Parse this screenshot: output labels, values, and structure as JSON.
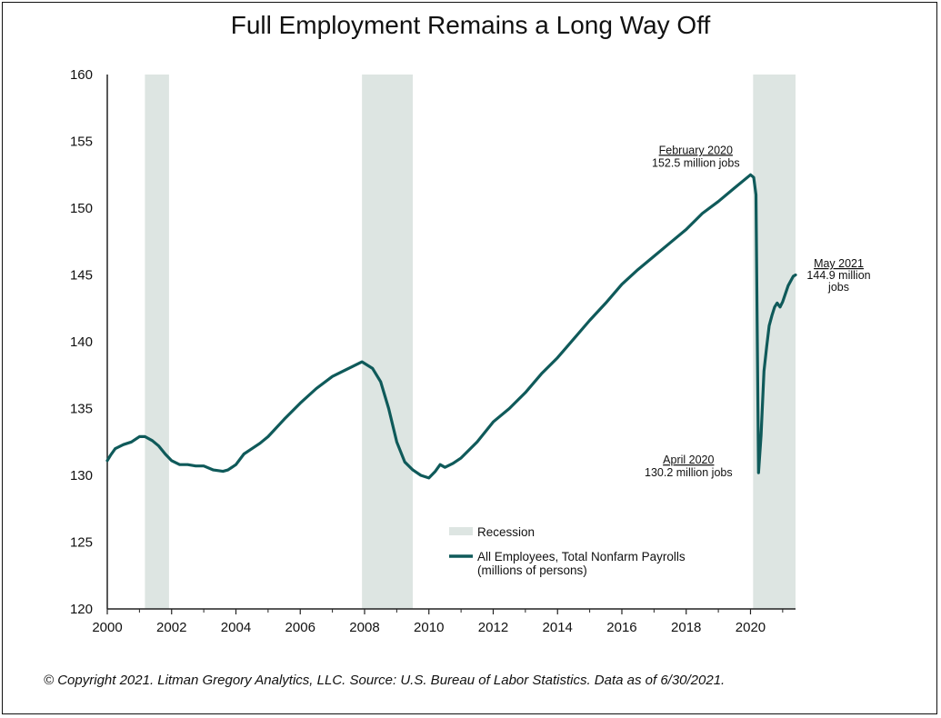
{
  "chart_data": {
    "type": "line",
    "title": "Full Employment Remains a Long Way Off",
    "xlabel": "",
    "ylabel": "",
    "xlim": [
      2000.0,
      2021.4
    ],
    "ylim": [
      120,
      160
    ],
    "x_ticks": [
      "2000",
      "2002",
      "2004",
      "2006",
      "2008",
      "2010",
      "2012",
      "2014",
      "2016",
      "2018",
      "2020"
    ],
    "y_ticks": [
      "120",
      "125",
      "130",
      "135",
      "140",
      "145",
      "150",
      "155",
      "160"
    ],
    "recessions": [
      {
        "start": 2001.17,
        "end": 2001.92
      },
      {
        "start": 2007.92,
        "end": 2009.5
      },
      {
        "start": 2020.08,
        "end": 2021.4
      }
    ],
    "colors": {
      "line": "#0f5a5a",
      "recession": "#dde5e2"
    },
    "series": [
      {
        "name": "All Employees, Total Nonfarm Payrolls",
        "x": [
          2000.0,
          2000.1,
          2000.25,
          2000.5,
          2000.75,
          2001.0,
          2001.17,
          2001.4,
          2001.6,
          2001.8,
          2002.0,
          2002.25,
          2002.5,
          2002.75,
          2003.0,
          2003.3,
          2003.6,
          2003.75,
          2004.0,
          2004.25,
          2004.5,
          2004.75,
          2005.0,
          2005.5,
          2006.0,
          2006.5,
          2007.0,
          2007.5,
          2007.92,
          2008.25,
          2008.5,
          2008.75,
          2009.0,
          2009.25,
          2009.5,
          2009.75,
          2010.0,
          2010.2,
          2010.35,
          2010.5,
          2010.75,
          2011.0,
          2011.5,
          2012.0,
          2012.5,
          2013.0,
          2013.5,
          2014.0,
          2014.5,
          2015.0,
          2015.5,
          2016.0,
          2016.5,
          2017.0,
          2017.5,
          2018.0,
          2018.5,
          2019.0,
          2019.5,
          2020.0,
          2020.1,
          2020.17,
          2020.25,
          2020.33,
          2020.42,
          2020.5,
          2020.58,
          2020.67,
          2020.75,
          2020.83,
          2020.92,
          2021.0,
          2021.17,
          2021.33,
          2021.4
        ],
        "y": [
          131.1,
          131.5,
          132.0,
          132.3,
          132.5,
          132.9,
          132.9,
          132.6,
          132.2,
          131.6,
          131.1,
          130.8,
          130.8,
          130.7,
          130.7,
          130.4,
          130.3,
          130.4,
          130.8,
          131.6,
          132.0,
          132.4,
          132.9,
          134.2,
          135.4,
          136.5,
          137.4,
          138.0,
          138.5,
          138.0,
          137.0,
          135.0,
          132.5,
          131.0,
          130.4,
          130.0,
          129.8,
          130.3,
          130.8,
          130.6,
          130.9,
          131.3,
          132.5,
          134.0,
          135.0,
          136.2,
          137.6,
          138.8,
          140.2,
          141.6,
          142.9,
          144.3,
          145.4,
          146.4,
          147.4,
          148.4,
          149.6,
          150.5,
          151.5,
          152.5,
          152.3,
          151.0,
          130.2,
          133.0,
          137.8,
          139.6,
          141.2,
          142.0,
          142.6,
          142.9,
          142.6,
          143.0,
          144.2,
          144.9,
          145.0
        ]
      }
    ],
    "annotations": [
      {
        "label": "February 2020",
        "text": "152.5 million jobs",
        "x": 2020.08,
        "y": 152.5
      },
      {
        "label": "April 2020",
        "text": "130.2 million jobs",
        "x": 2020.25,
        "y": 130.2
      },
      {
        "label": "May 2021",
        "text": "144.9 million",
        "text2": "jobs",
        "x": 2021.33,
        "y": 144.9
      }
    ],
    "legend": {
      "position": "bottom-right",
      "recession_label": "Recession",
      "series_label": "All Employees, Total Nonfarm Payrolls",
      "series_label_2": "(millions of persons)"
    }
  },
  "source_text": "© Copyright 2021. Litman Gregory Analytics, LLC. Source: U.S. Bureau of Labor Statistics. Data as of 6/30/2021."
}
